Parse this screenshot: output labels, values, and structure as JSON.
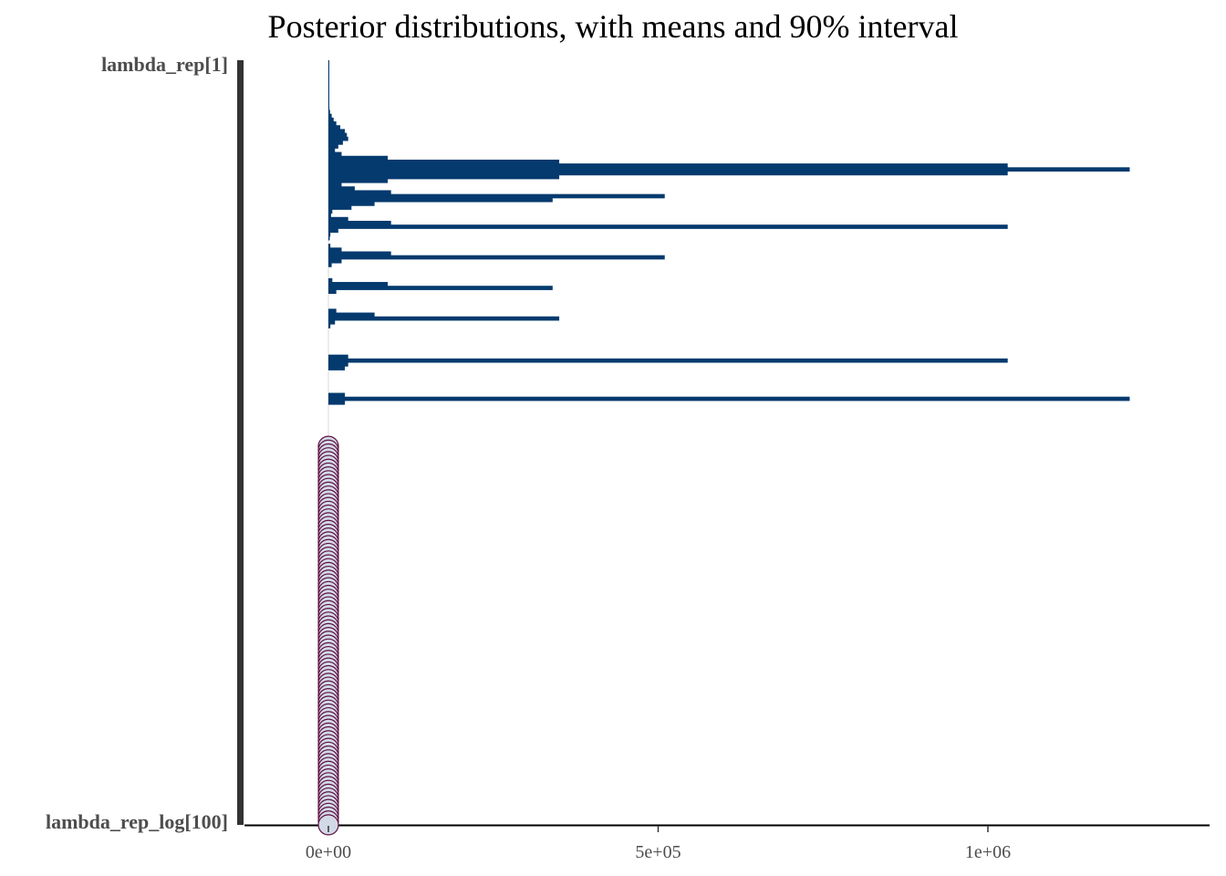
{
  "chart_data": {
    "type": "bar",
    "title": "Posterior distributions, with means and 90% interval",
    "x_axis": {
      "range": [
        -125000,
        1320000
      ],
      "ticks": [
        0,
        500000,
        1000000
      ],
      "tick_labels": [
        "0e+00",
        "5e+05",
        "1e+06"
      ]
    },
    "y_axis": {
      "parameters": 200,
      "first_label": "lambda_rep[1]",
      "last_label": "lambda_rep_log[100]",
      "visible_labels": [
        "lambda_rep[1]",
        "lambda_rep_log[100]"
      ]
    },
    "groups": [
      {
        "name": "lambda_rep",
        "index_range": [
          1,
          100
        ],
        "interval_upper_values": [
          0,
          0,
          0,
          0,
          0,
          0,
          0,
          0,
          0,
          0,
          0,
          0,
          1500,
          2500,
          5000,
          8000,
          12000,
          18000,
          25000,
          28000,
          30000,
          22000,
          15000,
          10000,
          20000,
          90000,
          350000,
          1030000,
          1215000,
          1030000,
          350000,
          90000,
          20000,
          40000,
          95000,
          510000,
          340000,
          70000,
          35000,
          6000,
          4000,
          30000,
          95000,
          1030000,
          15000,
          3000,
          2000,
          3000,
          20000,
          95000,
          510000,
          20000,
          5000,
          6000,
          90000,
          340000,
          12000,
          12000,
          70000,
          350000,
          10000,
          3000,
          30000,
          1030000,
          30000,
          25000,
          25000,
          1215000,
          25000
        ],
        "interval_upper_slots": [
          1,
          2,
          3,
          4,
          5,
          6,
          7,
          8,
          9,
          10,
          11,
          12,
          13,
          14,
          15,
          16,
          17,
          18,
          19,
          20,
          21,
          22,
          23,
          24,
          25,
          26,
          27,
          28,
          29,
          30,
          31,
          32,
          33,
          34,
          35,
          36,
          37,
          38,
          39,
          40,
          41,
          42,
          43,
          44,
          45,
          46,
          47,
          49,
          50,
          51,
          52,
          53,
          54,
          58,
          59,
          60,
          61,
          66,
          67,
          68,
          69,
          70,
          78,
          79,
          80,
          81,
          88,
          89,
          90
        ],
        "bar_color": "#043A6E"
      },
      {
        "name": "lambda_rep_log",
        "index_range": [
          1,
          100
        ],
        "mean_value": 0,
        "point_fill": "#D2D9E6",
        "point_edge": "#5F1041"
      }
    ],
    "reference_line_x": 0,
    "grid": false,
    "legend": "none"
  }
}
